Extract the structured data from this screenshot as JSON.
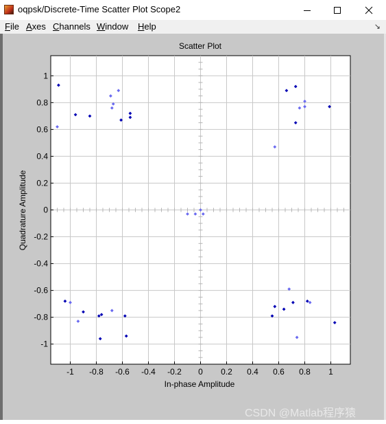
{
  "window": {
    "title": "oqpsk/Discrete-Time Scatter Plot Scope2",
    "minimize_icon": "minimize-icon",
    "maximize_icon": "maximize-icon",
    "close_icon": "close-icon"
  },
  "menu": {
    "items": [
      {
        "first": "F",
        "rest": "ile"
      },
      {
        "first": "A",
        "rest": "xes"
      },
      {
        "first": "C",
        "rest": "hannels"
      },
      {
        "first": "W",
        "rest": "indow"
      },
      {
        "first": "H",
        "rest": "elp"
      }
    ],
    "dock_icon": "dock-arrow-icon"
  },
  "watermark": "CSDN @Matlab程序猿",
  "chart_data": {
    "type": "scatter",
    "title": "Scatter Plot",
    "xlabel": "In-phase Amplitude",
    "ylabel": "Quadrature Amplitude",
    "xlim": [
      -1.15,
      1.15
    ],
    "ylim": [
      -1.15,
      1.15
    ],
    "grid": true,
    "xticks": [
      -1,
      -0.8,
      -0.6,
      -0.4,
      -0.2,
      0,
      0.2,
      0.4,
      0.6,
      0.8,
      1
    ],
    "yticks": [
      1,
      0.8,
      0.6,
      0.4,
      0.2,
      0,
      -0.2,
      -0.4,
      -0.6,
      -0.8,
      -1
    ],
    "xticklabels": [
      "-1",
      "-0.8",
      "-0.6",
      "-0.4",
      "-0.2",
      "0",
      "0.2",
      "0.4",
      "0.6",
      "0.8",
      "1"
    ],
    "yticklabels": [
      "1",
      "0.8",
      "0.6",
      "0.4",
      "0.2",
      "0",
      "-0.2",
      "-0.4",
      "-0.6",
      "-0.8",
      "-1"
    ],
    "colors": {
      "dark": "#0000b4",
      "light": "#6a6af0",
      "grid": "#c8c8c8",
      "axes_bg": "#ffffff"
    },
    "points": [
      {
        "x": -1.09,
        "y": 0.93,
        "shade": "dark"
      },
      {
        "x": -1.1,
        "y": 0.62,
        "shade": "light"
      },
      {
        "x": -0.96,
        "y": 0.71,
        "shade": "dark"
      },
      {
        "x": -0.85,
        "y": 0.7,
        "shade": "dark"
      },
      {
        "x": -0.69,
        "y": 0.85,
        "shade": "light"
      },
      {
        "x": -0.67,
        "y": 0.79,
        "shade": "light"
      },
      {
        "x": -0.68,
        "y": 0.76,
        "shade": "light"
      },
      {
        "x": -0.63,
        "y": 0.89,
        "shade": "light"
      },
      {
        "x": -0.61,
        "y": 0.67,
        "shade": "dark"
      },
      {
        "x": -0.54,
        "y": 0.72,
        "shade": "dark"
      },
      {
        "x": -0.54,
        "y": 0.69,
        "shade": "dark"
      },
      {
        "x": 0.66,
        "y": 0.89,
        "shade": "dark"
      },
      {
        "x": 0.73,
        "y": 0.92,
        "shade": "dark"
      },
      {
        "x": 0.76,
        "y": 0.76,
        "shade": "light"
      },
      {
        "x": 0.8,
        "y": 0.77,
        "shade": "light"
      },
      {
        "x": 0.8,
        "y": 0.81,
        "shade": "light"
      },
      {
        "x": 0.99,
        "y": 0.77,
        "shade": "dark"
      },
      {
        "x": 0.73,
        "y": 0.65,
        "shade": "dark"
      },
      {
        "x": 0.57,
        "y": 0.47,
        "shade": "light"
      },
      {
        "x": -0.1,
        "y": -0.03,
        "shade": "light"
      },
      {
        "x": -0.04,
        "y": -0.03,
        "shade": "light"
      },
      {
        "x": 0.0,
        "y": 0.0,
        "shade": "light"
      },
      {
        "x": 0.02,
        "y": -0.03,
        "shade": "light"
      },
      {
        "x": -1.04,
        "y": -0.68,
        "shade": "dark"
      },
      {
        "x": -1.0,
        "y": -0.69,
        "shade": "light"
      },
      {
        "x": -0.9,
        "y": -0.76,
        "shade": "dark"
      },
      {
        "x": -0.94,
        "y": -0.83,
        "shade": "light"
      },
      {
        "x": -0.78,
        "y": -0.79,
        "shade": "dark"
      },
      {
        "x": -0.76,
        "y": -0.78,
        "shade": "dark"
      },
      {
        "x": -0.68,
        "y": -0.75,
        "shade": "light"
      },
      {
        "x": -0.77,
        "y": -0.96,
        "shade": "dark"
      },
      {
        "x": -0.58,
        "y": -0.79,
        "shade": "dark"
      },
      {
        "x": -0.57,
        "y": -0.94,
        "shade": "dark"
      },
      {
        "x": 0.55,
        "y": -0.79,
        "shade": "dark"
      },
      {
        "x": 0.57,
        "y": -0.72,
        "shade": "dark"
      },
      {
        "x": 0.64,
        "y": -0.74,
        "shade": "dark"
      },
      {
        "x": 0.68,
        "y": -0.59,
        "shade": "light"
      },
      {
        "x": 0.71,
        "y": -0.69,
        "shade": "dark"
      },
      {
        "x": 0.74,
        "y": -0.95,
        "shade": "light"
      },
      {
        "x": 0.82,
        "y": -0.68,
        "shade": "dark"
      },
      {
        "x": 0.84,
        "y": -0.69,
        "shade": "light"
      },
      {
        "x": 1.03,
        "y": -0.84,
        "shade": "dark"
      }
    ]
  }
}
